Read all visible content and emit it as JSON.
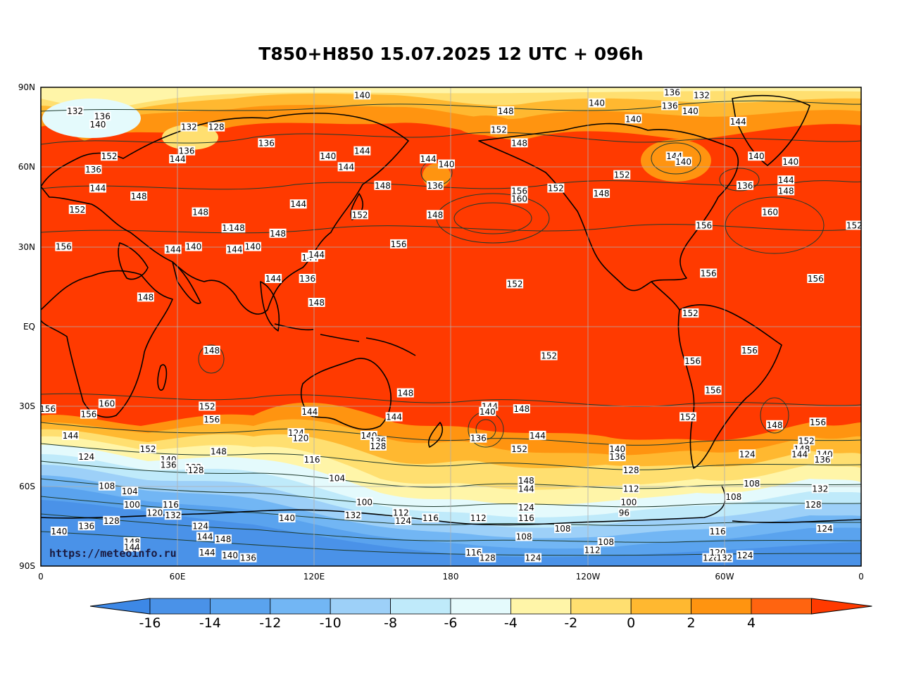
{
  "title": "T850+H850 15.07.2025 12 UTC + 096h",
  "watermark": "https://meteoinfo.ru",
  "axes": {
    "y_ticks": [
      "90N",
      "60N",
      "30N",
      "EQ",
      "30S",
      "60S",
      "90S"
    ],
    "x_ticks": [
      "0",
      "60E",
      "120E",
      "180",
      "120W",
      "60W",
      "0"
    ]
  },
  "colorbar": {
    "labels": [
      "-16",
      "-14",
      "-12",
      "-10",
      "-8",
      "-6",
      "-4",
      "-2",
      "0",
      "2",
      "4"
    ],
    "colors": [
      "#4a92e8",
      "#5aa3ee",
      "#72b6f4",
      "#9dd0f8",
      "#bfeafa",
      "#e4fafc",
      "#fff5a8",
      "#ffdf70",
      "#ffb830",
      "#ff9410",
      "#ff6410"
    ],
    "under_color": "#3d88e6",
    "over_color": "#ff3a00"
  },
  "map_colors": {
    "warm": "#ff3a00",
    "contour": "#1e3b2e",
    "coast": "#000000",
    "grid": "#b0b0b0"
  },
  "height_labels": [
    {
      "t": "140",
      "lon": 141,
      "lat": 87
    },
    {
      "t": "136",
      "lon": 277,
      "lat": 88
    },
    {
      "t": "132",
      "lon": 290,
      "lat": 87
    },
    {
      "t": "132",
      "lon": 15,
      "lat": 81
    },
    {
      "t": "136",
      "lon": 27,
      "lat": 79
    },
    {
      "t": "140",
      "lon": 25,
      "lat": 76
    },
    {
      "t": "132",
      "lon": 65,
      "lat": 75
    },
    {
      "t": "128",
      "lon": 77,
      "lat": 75
    },
    {
      "t": "148",
      "lon": 204,
      "lat": 81
    },
    {
      "t": "140",
      "lon": 244,
      "lat": 84
    },
    {
      "t": "136",
      "lon": 276,
      "lat": 83
    },
    {
      "t": "140",
      "lon": 285,
      "lat": 81
    },
    {
      "t": "140",
      "lon": 260,
      "lat": 78
    },
    {
      "t": "152",
      "lon": 201,
      "lat": 74
    },
    {
      "t": "148",
      "lon": 210,
      "lat": 69
    },
    {
      "t": "144",
      "lon": 306,
      "lat": 77
    },
    {
      "t": "152",
      "lon": 30,
      "lat": 64
    },
    {
      "t": "144",
      "lon": 60,
      "lat": 63
    },
    {
      "t": "136",
      "lon": 64,
      "lat": 66
    },
    {
      "t": "136",
      "lon": 99,
      "lat": 69
    },
    {
      "t": "140",
      "lon": 126,
      "lat": 64
    },
    {
      "t": "144",
      "lon": 141,
      "lat": 66
    },
    {
      "t": "144",
      "lon": 134,
      "lat": 60
    },
    {
      "t": "144",
      "lon": 170,
      "lat": 63
    },
    {
      "t": "140",
      "lon": 178,
      "lat": 61
    },
    {
      "t": "144",
      "lon": 278,
      "lat": 64
    },
    {
      "t": "140",
      "lon": 282,
      "lat": 62
    },
    {
      "t": "140",
      "lon": 314,
      "lat": 64
    },
    {
      "t": "140",
      "lon": 329,
      "lat": 62
    },
    {
      "t": "136",
      "lon": 23,
      "lat": 59
    },
    {
      "t": "144",
      "lon": 25,
      "lat": 52
    },
    {
      "t": "152",
      "lon": 16,
      "lat": 44
    },
    {
      "t": "148",
      "lon": 43,
      "lat": 49
    },
    {
      "t": "136",
      "lon": 173,
      "lat": 53
    },
    {
      "t": "148",
      "lon": 150,
      "lat": 53
    },
    {
      "t": "156",
      "lon": 210,
      "lat": 51
    },
    {
      "t": "160",
      "lon": 210,
      "lat": 48
    },
    {
      "t": "152",
      "lon": 226,
      "lat": 52
    },
    {
      "t": "152",
      "lon": 255,
      "lat": 57
    },
    {
      "t": "148",
      "lon": 246,
      "lat": 50
    },
    {
      "t": "136",
      "lon": 309,
      "lat": 53
    },
    {
      "t": "144",
      "lon": 327,
      "lat": 55
    },
    {
      "t": "148",
      "lon": 327,
      "lat": 51
    },
    {
      "t": "144",
      "lon": 113,
      "lat": 46
    },
    {
      "t": "148",
      "lon": 70,
      "lat": 43
    },
    {
      "t": "152",
      "lon": 140,
      "lat": 42
    },
    {
      "t": "148",
      "lon": 173,
      "lat": 42
    },
    {
      "t": "160",
      "lon": 320,
      "lat": 43
    },
    {
      "t": "156",
      "lon": 291,
      "lat": 38
    },
    {
      "t": "152",
      "lon": 357,
      "lat": 38
    },
    {
      "t": "144",
      "lon": 83,
      "lat": 37
    },
    {
      "t": "148",
      "lon": 86,
      "lat": 37
    },
    {
      "t": "148",
      "lon": 104,
      "lat": 35
    },
    {
      "t": "156",
      "lon": 10,
      "lat": 30
    },
    {
      "t": "144",
      "lon": 58,
      "lat": 29
    },
    {
      "t": "140",
      "lon": 67,
      "lat": 30
    },
    {
      "t": "144",
      "lon": 85,
      "lat": 29
    },
    {
      "t": "140",
      "lon": 93,
      "lat": 30
    },
    {
      "t": "156",
      "lon": 157,
      "lat": 31
    },
    {
      "t": "144",
      "lon": 118,
      "lat": 26
    },
    {
      "t": "144",
      "lon": 121,
      "lat": 27
    },
    {
      "t": "144",
      "lon": 102,
      "lat": 18
    },
    {
      "t": "136",
      "lon": 117,
      "lat": 18
    },
    {
      "t": "152",
      "lon": 208,
      "lat": 16
    },
    {
      "t": "156",
      "lon": 293,
      "lat": 20
    },
    {
      "t": "156",
      "lon": 340,
      "lat": 18
    },
    {
      "t": "148",
      "lon": 46,
      "lat": 11
    },
    {
      "t": "148",
      "lon": 121,
      "lat": 9
    },
    {
      "t": "152",
      "lon": 285,
      "lat": 5
    },
    {
      "t": "148",
      "lon": 75,
      "lat": -9
    },
    {
      "t": "152",
      "lon": 223,
      "lat": -11
    },
    {
      "t": "156",
      "lon": 286,
      "lat": -13
    },
    {
      "t": "156",
      "lon": 311,
      "lat": -9
    },
    {
      "t": "156",
      "lon": 295,
      "lat": -24
    },
    {
      "t": "148",
      "lon": 160,
      "lat": -25
    },
    {
      "t": "156",
      "lon": 3,
      "lat": -31
    },
    {
      "t": "160",
      "lon": 29,
      "lat": -29
    },
    {
      "t": "156",
      "lon": 21,
      "lat": -33
    },
    {
      "t": "152",
      "lon": 73,
      "lat": -30
    },
    {
      "t": "156",
      "lon": 75,
      "lat": -35
    },
    {
      "t": "144",
      "lon": 118,
      "lat": -32
    },
    {
      "t": "144",
      "lon": 155,
      "lat": -34
    },
    {
      "t": "144",
      "lon": 197,
      "lat": -30
    },
    {
      "t": "140",
      "lon": 196,
      "lat": -32
    },
    {
      "t": "148",
      "lon": 211,
      "lat": -31
    },
    {
      "t": "152",
      "lon": 284,
      "lat": -34
    },
    {
      "t": "148",
      "lon": 322,
      "lat": -37
    },
    {
      "t": "156",
      "lon": 341,
      "lat": -36
    },
    {
      "t": "144",
      "lon": 13,
      "lat": -41
    },
    {
      "t": "124",
      "lon": 20,
      "lat": -49
    },
    {
      "t": "152",
      "lon": 47,
      "lat": -46
    },
    {
      "t": "148",
      "lon": 78,
      "lat": -47
    },
    {
      "t": "124",
      "lon": 112,
      "lat": -40
    },
    {
      "t": "120",
      "lon": 114,
      "lat": -42
    },
    {
      "t": "140",
      "lon": 144,
      "lat": -41
    },
    {
      "t": "136",
      "lon": 148,
      "lat": -43
    },
    {
      "t": "128",
      "lon": 148,
      "lat": -45
    },
    {
      "t": "136",
      "lon": 192,
      "lat": -42
    },
    {
      "t": "144",
      "lon": 218,
      "lat": -41
    },
    {
      "t": "152",
      "lon": 210,
      "lat": -46
    },
    {
      "t": "140",
      "lon": 253,
      "lat": -46
    },
    {
      "t": "136",
      "lon": 253,
      "lat": -49
    },
    {
      "t": "128",
      "lon": 259,
      "lat": -54
    },
    {
      "t": "124",
      "lon": 310,
      "lat": -48
    },
    {
      "t": "152",
      "lon": 336,
      "lat": -43
    },
    {
      "t": "148",
      "lon": 334,
      "lat": -46
    },
    {
      "t": "144",
      "lon": 333,
      "lat": -48
    },
    {
      "t": "140",
      "lon": 344,
      "lat": -48
    },
    {
      "t": "136",
      "lon": 343,
      "lat": -50
    },
    {
      "t": "140",
      "lon": 56,
      "lat": -50
    },
    {
      "t": "136",
      "lon": 56,
      "lat": -52
    },
    {
      "t": "132",
      "lon": 67,
      "lat": -53
    },
    {
      "t": "128",
      "lon": 68,
      "lat": -54
    },
    {
      "t": "116",
      "lon": 119,
      "lat": -50
    },
    {
      "t": "104",
      "lon": 130,
      "lat": -57
    },
    {
      "t": "108",
      "lon": 29,
      "lat": -60
    },
    {
      "t": "104",
      "lon": 39,
      "lat": -62
    },
    {
      "t": "148",
      "lon": 213,
      "lat": -58
    },
    {
      "t": "144",
      "lon": 213,
      "lat": -61
    },
    {
      "t": "112",
      "lon": 259,
      "lat": -61
    },
    {
      "t": "108",
      "lon": 312,
      "lat": -59
    },
    {
      "t": "108",
      "lon": 304,
      "lat": -64
    },
    {
      "t": "132",
      "lon": 342,
      "lat": -61
    },
    {
      "t": "100",
      "lon": 40,
      "lat": -67
    },
    {
      "t": "116",
      "lon": 57,
      "lat": -67
    },
    {
      "t": "120",
      "lon": 50,
      "lat": -70
    },
    {
      "t": "132",
      "lon": 58,
      "lat": -71
    },
    {
      "t": "100",
      "lon": 142,
      "lat": -66
    },
    {
      "t": "132",
      "lon": 137,
      "lat": -71
    },
    {
      "t": "112",
      "lon": 158,
      "lat": -70
    },
    {
      "t": "124",
      "lon": 159,
      "lat": -73
    },
    {
      "t": "116",
      "lon": 171,
      "lat": -72
    },
    {
      "t": "112",
      "lon": 192,
      "lat": -72
    },
    {
      "t": "124",
      "lon": 213,
      "lat": -68
    },
    {
      "t": "116",
      "lon": 213,
      "lat": -72
    },
    {
      "t": "100",
      "lon": 258,
      "lat": -66
    },
    {
      "t": "96",
      "lon": 256,
      "lat": -70
    },
    {
      "t": "128",
      "lon": 339,
      "lat": -67
    },
    {
      "t": "140",
      "lon": 8,
      "lat": -77
    },
    {
      "t": "136",
      "lon": 20,
      "lat": -75
    },
    {
      "t": "128",
      "lon": 31,
      "lat": -73
    },
    {
      "t": "124",
      "lon": 70,
      "lat": -75
    },
    {
      "t": "144",
      "lon": 72,
      "lat": -79
    },
    {
      "t": "148",
      "lon": 80,
      "lat": -80
    },
    {
      "t": "140",
      "lon": 108,
      "lat": -72
    },
    {
      "t": "148",
      "lon": 40,
      "lat": -81
    },
    {
      "t": "144",
      "lon": 40,
      "lat": -83
    },
    {
      "t": "108",
      "lon": 229,
      "lat": -76
    },
    {
      "t": "108",
      "lon": 212,
      "lat": -79
    },
    {
      "t": "108",
      "lon": 248,
      "lat": -81
    },
    {
      "t": "112",
      "lon": 242,
      "lat": -84
    },
    {
      "t": "116",
      "lon": 297,
      "lat": -77
    },
    {
      "t": "124",
      "lon": 344,
      "lat": -76
    },
    {
      "t": "144",
      "lon": 73,
      "lat": -85
    },
    {
      "t": "140",
      "lon": 83,
      "lat": -86
    },
    {
      "t": "136",
      "lon": 91,
      "lat": -87
    },
    {
      "t": "116",
      "lon": 190,
      "lat": -85
    },
    {
      "t": "128",
      "lon": 196,
      "lat": -87
    },
    {
      "t": "124",
      "lon": 216,
      "lat": -87
    },
    {
      "t": "128",
      "lon": 294,
      "lat": -87
    },
    {
      "t": "120",
      "lon": 297,
      "lat": -85
    },
    {
      "t": "132",
      "lon": 300,
      "lat": -87
    },
    {
      "t": "124",
      "lon": 309,
      "lat": -86
    }
  ]
}
